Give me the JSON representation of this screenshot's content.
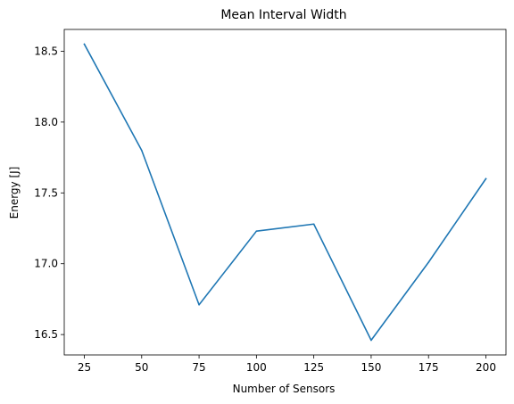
{
  "chart_data": {
    "type": "line",
    "title": "Mean Interval Width",
    "xlabel": "Number of Sensors",
    "ylabel": "Energy [J]",
    "x": [
      25,
      50,
      75,
      100,
      125,
      150,
      175,
      200
    ],
    "series": [
      {
        "values": [
          18.55,
          17.8,
          16.71,
          17.23,
          17.28,
          16.46,
          17.01,
          17.6
        ],
        "color": "#1f77b4"
      }
    ],
    "xlim": [
      16.25,
      208.75
    ],
    "ylim": [
      16.356,
      18.654
    ],
    "xticks": [
      25,
      50,
      75,
      100,
      125,
      150,
      175,
      200
    ],
    "xtick_labels": [
      "25",
      "50",
      "75",
      "100",
      "125",
      "150",
      "175",
      "200"
    ],
    "yticks": [
      16.5,
      17.0,
      17.5,
      18.0,
      18.5
    ],
    "ytick_labels": [
      "16.5",
      "17.0",
      "17.5",
      "18.0",
      "18.5"
    ],
    "grid": false,
    "legend": false
  }
}
